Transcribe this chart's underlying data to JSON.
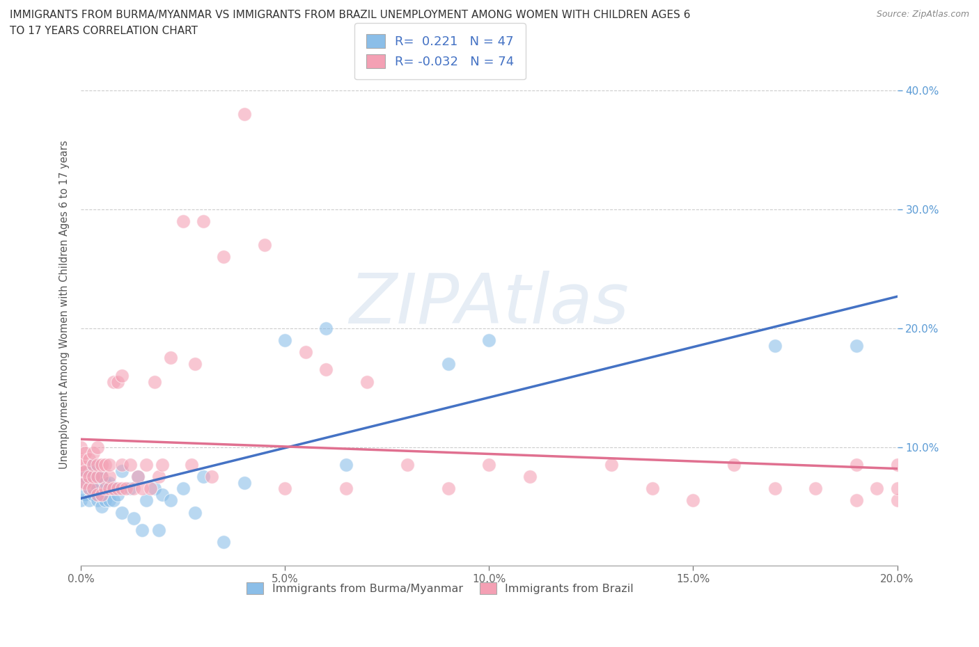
{
  "title_line1": "IMMIGRANTS FROM BURMA/MYANMAR VS IMMIGRANTS FROM BRAZIL UNEMPLOYMENT AMONG WOMEN WITH CHILDREN AGES 6",
  "title_line2": "TO 17 YEARS CORRELATION CHART",
  "source": "Source: ZipAtlas.com",
  "xlabel_burma": "Immigrants from Burma/Myanmar",
  "xlabel_brazil": "Immigrants from Brazil",
  "ylabel_label": "Unemployment Among Women with Children Ages 6 to 17 years",
  "xlim": [
    0.0,
    0.2
  ],
  "ylim": [
    0.0,
    0.44
  ],
  "xticks": [
    0.0,
    0.05,
    0.1,
    0.15,
    0.2
  ],
  "yticks_right": [
    0.1,
    0.2,
    0.3,
    0.4
  ],
  "color_burma": "#8BBEE8",
  "color_brazil": "#F4A0B4",
  "line_color_burma": "#4472C4",
  "line_color_brazil": "#E07090",
  "r_burma": 0.221,
  "n_burma": 47,
  "r_brazil": -0.032,
  "n_brazil": 74,
  "legend_text_color": "#4472C4",
  "legend_r_color": "#4472C4",
  "watermark": "ZIPAtlas",
  "watermark_color_zip": "#C0CEDF",
  "watermark_color_atlas": "#A0C0D8",
  "background_color": "#FFFFFF",
  "grid_color": "#CCCCCC",
  "axis_color": "#AAAAAA",
  "burma_x": [
    0.0,
    0.0,
    0.0,
    0.001,
    0.001,
    0.002,
    0.002,
    0.002,
    0.003,
    0.003,
    0.003,
    0.004,
    0.004,
    0.004,
    0.005,
    0.005,
    0.005,
    0.006,
    0.006,
    0.007,
    0.007,
    0.008,
    0.008,
    0.009,
    0.01,
    0.01,
    0.012,
    0.013,
    0.014,
    0.015,
    0.016,
    0.018,
    0.019,
    0.02,
    0.022,
    0.025,
    0.028,
    0.03,
    0.035,
    0.04,
    0.05,
    0.06,
    0.065,
    0.09,
    0.1,
    0.17,
    0.19
  ],
  "burma_y": [
    0.055,
    0.07,
    0.08,
    0.06,
    0.075,
    0.055,
    0.065,
    0.08,
    0.06,
    0.07,
    0.085,
    0.055,
    0.065,
    0.075,
    0.05,
    0.06,
    0.075,
    0.055,
    0.07,
    0.055,
    0.07,
    0.055,
    0.065,
    0.06,
    0.045,
    0.08,
    0.065,
    0.04,
    0.075,
    0.03,
    0.055,
    0.065,
    0.03,
    0.06,
    0.055,
    0.065,
    0.045,
    0.075,
    0.02,
    0.07,
    0.19,
    0.2,
    0.085,
    0.17,
    0.19,
    0.185,
    0.185
  ],
  "brazil_x": [
    0.0,
    0.0,
    0.0,
    0.0,
    0.0,
    0.001,
    0.001,
    0.001,
    0.002,
    0.002,
    0.002,
    0.003,
    0.003,
    0.003,
    0.003,
    0.004,
    0.004,
    0.004,
    0.004,
    0.005,
    0.005,
    0.005,
    0.006,
    0.006,
    0.007,
    0.007,
    0.007,
    0.008,
    0.008,
    0.009,
    0.009,
    0.01,
    0.01,
    0.01,
    0.011,
    0.012,
    0.013,
    0.014,
    0.015,
    0.016,
    0.017,
    0.018,
    0.019,
    0.02,
    0.022,
    0.025,
    0.027,
    0.028,
    0.03,
    0.032,
    0.035,
    0.04,
    0.045,
    0.05,
    0.055,
    0.06,
    0.065,
    0.07,
    0.08,
    0.09,
    0.1,
    0.11,
    0.13,
    0.14,
    0.15,
    0.16,
    0.17,
    0.18,
    0.19,
    0.19,
    0.195,
    0.2,
    0.2,
    0.2
  ],
  "brazil_y": [
    0.07,
    0.08,
    0.085,
    0.09,
    0.1,
    0.07,
    0.08,
    0.095,
    0.065,
    0.075,
    0.09,
    0.065,
    0.075,
    0.085,
    0.095,
    0.06,
    0.075,
    0.085,
    0.1,
    0.06,
    0.075,
    0.085,
    0.065,
    0.085,
    0.065,
    0.075,
    0.085,
    0.065,
    0.155,
    0.065,
    0.155,
    0.065,
    0.085,
    0.16,
    0.065,
    0.085,
    0.065,
    0.075,
    0.065,
    0.085,
    0.065,
    0.155,
    0.075,
    0.085,
    0.175,
    0.29,
    0.085,
    0.17,
    0.29,
    0.075,
    0.26,
    0.38,
    0.27,
    0.065,
    0.18,
    0.165,
    0.065,
    0.155,
    0.085,
    0.065,
    0.085,
    0.075,
    0.085,
    0.065,
    0.055,
    0.085,
    0.065,
    0.065,
    0.055,
    0.085,
    0.065,
    0.055,
    0.085,
    0.065
  ]
}
